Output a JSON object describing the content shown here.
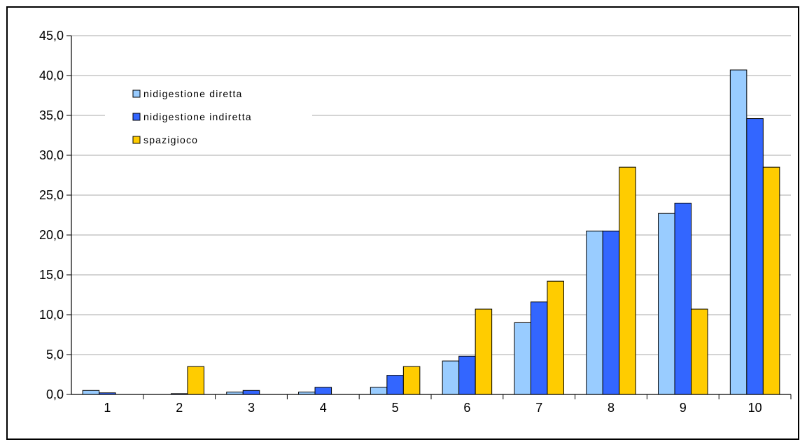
{
  "chart_data": {
    "type": "bar",
    "categories": [
      "1",
      "2",
      "3",
      "4",
      "5",
      "6",
      "7",
      "8",
      "9",
      "10"
    ],
    "series": [
      {
        "name": "nidigestione diretta",
        "color": "#99ccff",
        "values": [
          0.5,
          0.0,
          0.3,
          0.3,
          0.9,
          4.2,
          9.0,
          20.5,
          22.7,
          40.7
        ]
      },
      {
        "name": "nidigestione indiretta",
        "color": "#3366ff",
        "values": [
          0.2,
          0.1,
          0.5,
          0.9,
          2.4,
          4.8,
          11.6,
          20.5,
          24.0,
          34.6
        ]
      },
      {
        "name": "spazigioco",
        "color": "#ffcc00",
        "values": [
          0.0,
          3.5,
          0.0,
          0.0,
          3.5,
          10.7,
          14.2,
          28.5,
          10.7,
          28.5
        ]
      }
    ],
    "ylim": [
      0,
      45
    ],
    "yticks": [
      "0,0",
      "5,0",
      "10,0",
      "15,0",
      "20,0",
      "25,0",
      "30,0",
      "35,0",
      "40,0",
      "45,0"
    ],
    "ytick_values": [
      0,
      5,
      10,
      15,
      20,
      25,
      30,
      35,
      40,
      45
    ],
    "grid": true,
    "legend_position": "top-left",
    "title": "",
    "xlabel": "",
    "ylabel": ""
  }
}
